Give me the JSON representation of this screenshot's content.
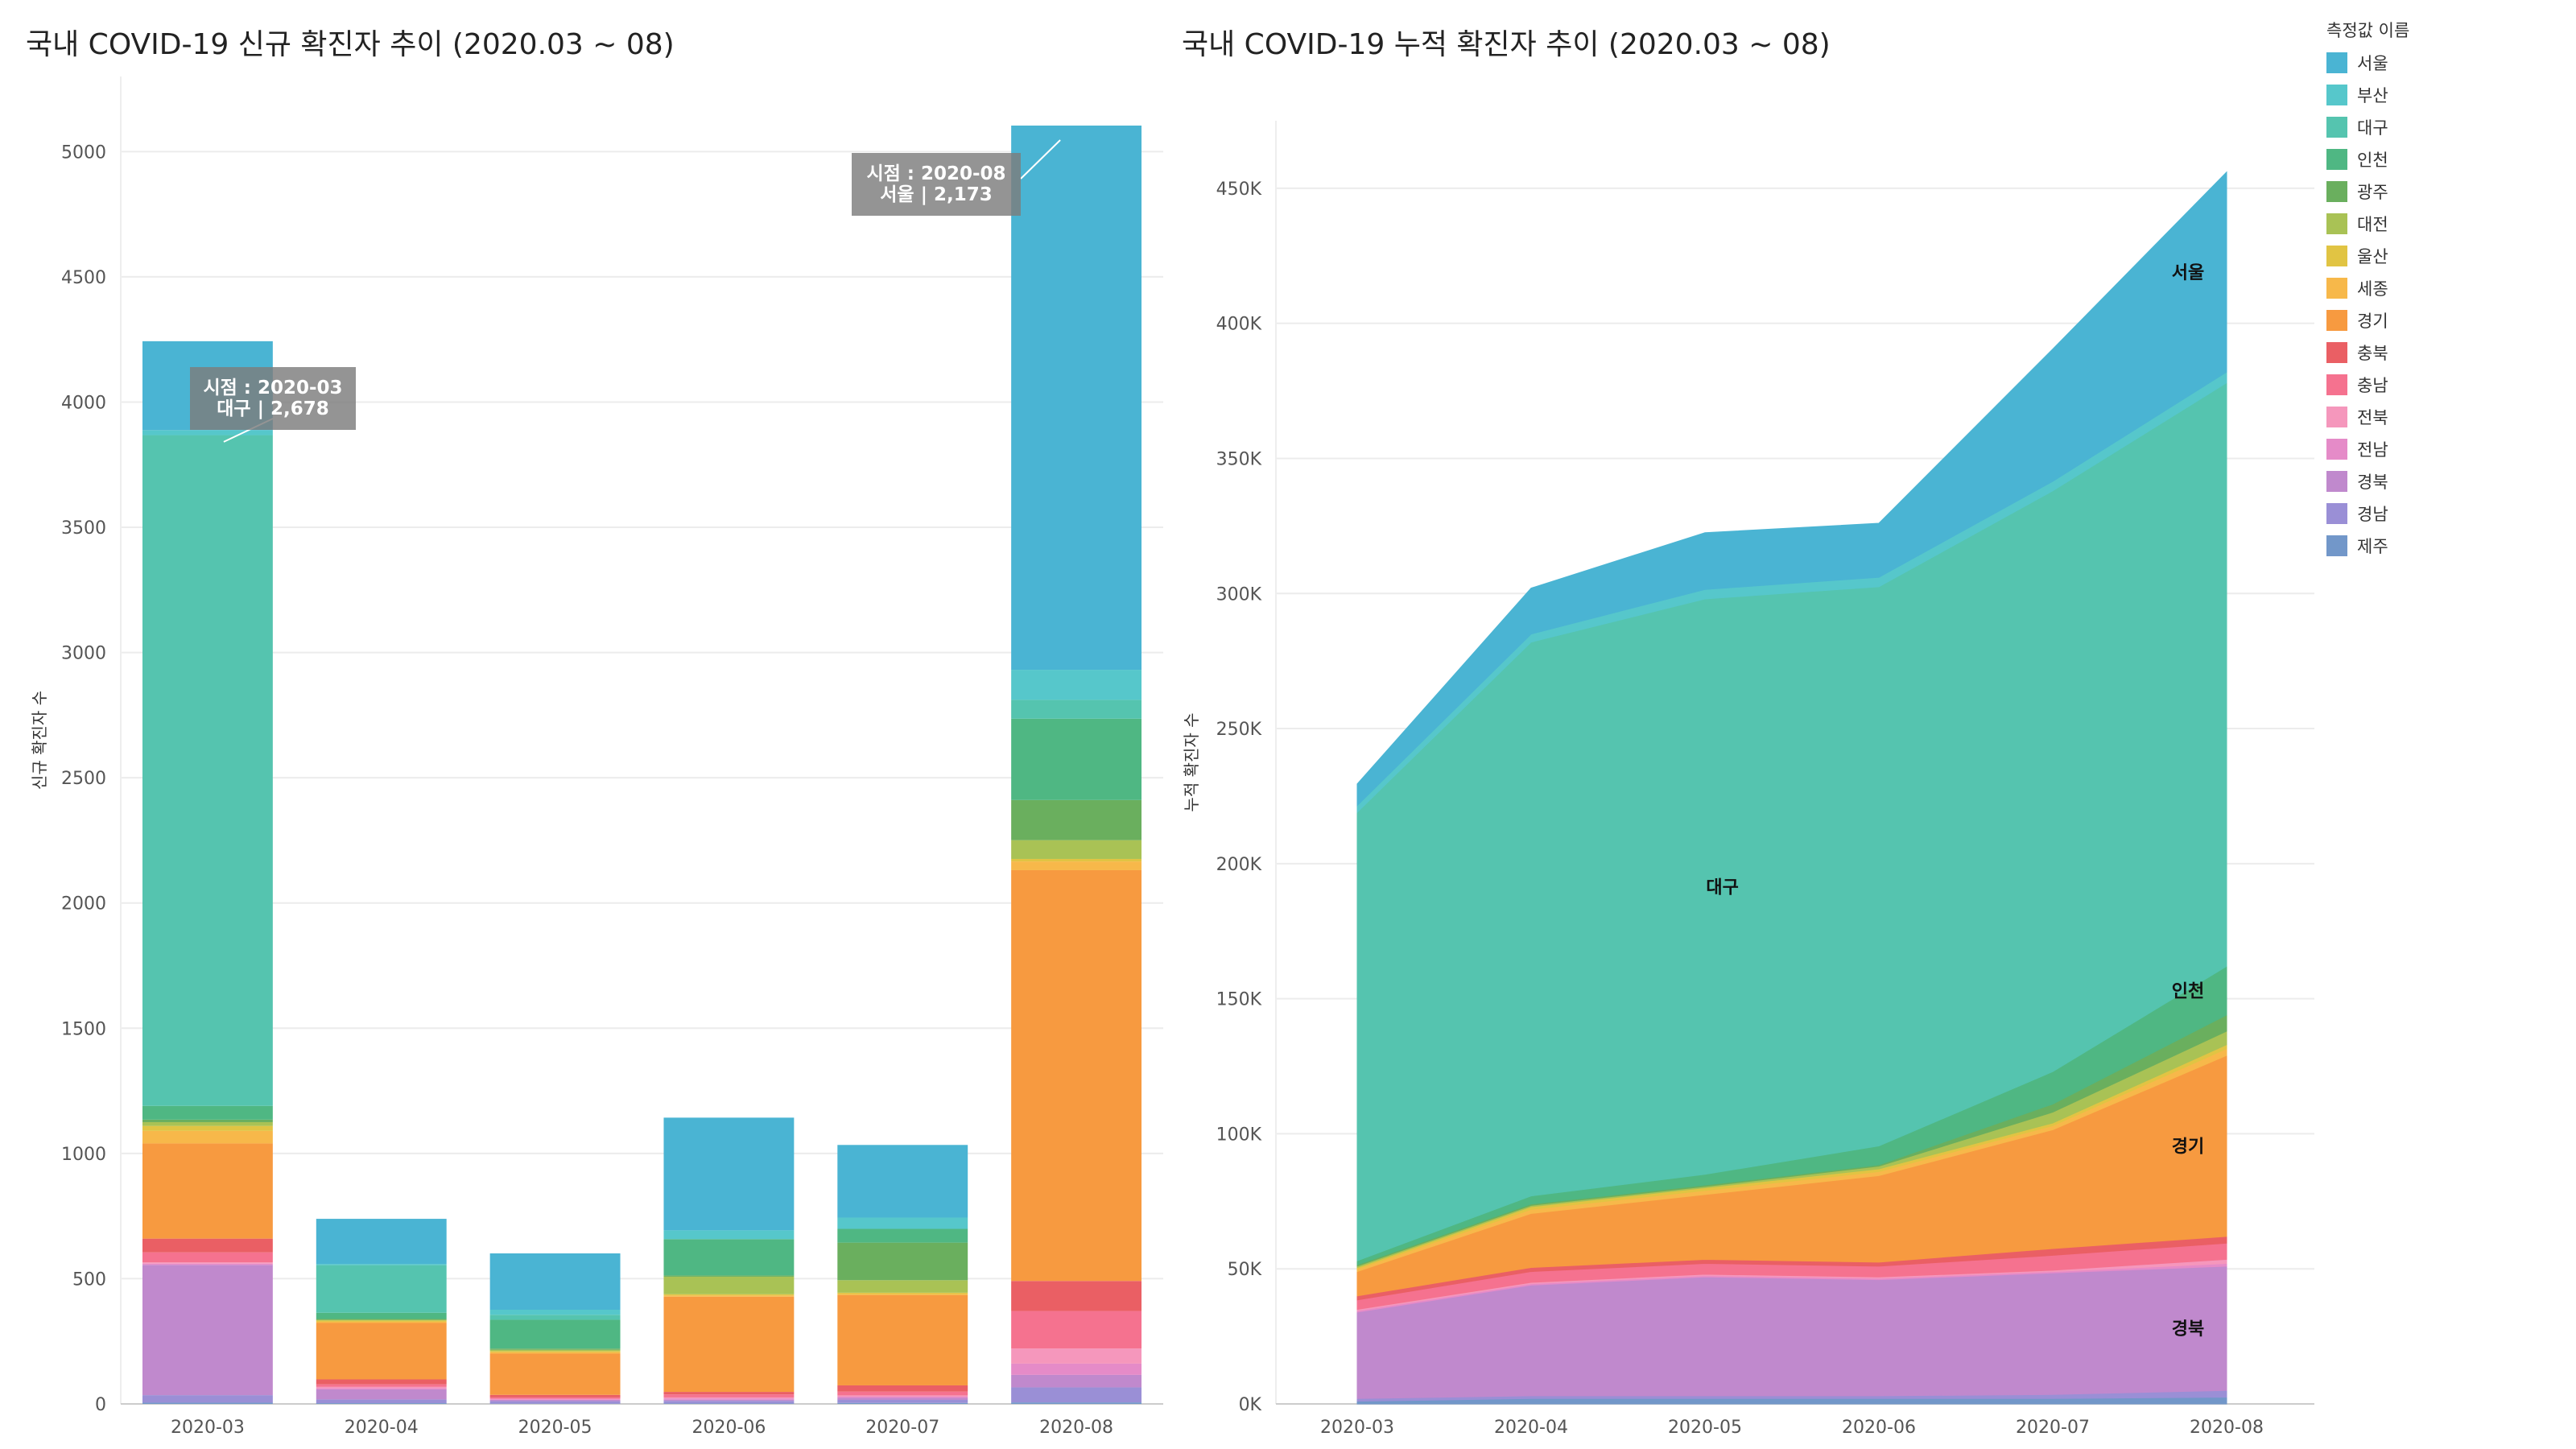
{
  "legend_title": "측정값 이름",
  "regions": [
    {
      "name": "서울",
      "color": "#4ab4d3"
    },
    {
      "name": "부산",
      "color": "#56c7cb"
    },
    {
      "name": "대구",
      "color": "#55c4af"
    },
    {
      "name": "인천",
      "color": "#4fb783"
    },
    {
      "name": "광주",
      "color": "#6aaf5e"
    },
    {
      "name": "대전",
      "color": "#a9c255"
    },
    {
      "name": "울산",
      "color": "#e1c443"
    },
    {
      "name": "세종",
      "color": "#f7b84a"
    },
    {
      "name": "경기",
      "color": "#f79a40"
    },
    {
      "name": "충북",
      "color": "#ea5f64"
    },
    {
      "name": "충남",
      "color": "#f5728f"
    },
    {
      "name": "전북",
      "color": "#f597bc"
    },
    {
      "name": "전남",
      "color": "#e58bc8"
    },
    {
      "name": "경북",
      "color": "#c089cd"
    },
    {
      "name": "경남",
      "color": "#9a8fd6"
    },
    {
      "name": "제주",
      "color": "#7297c9"
    }
  ],
  "chart_data": [
    {
      "type": "bar",
      "stacked": true,
      "title": "국내 COVID-19 신규 확진자 추이 (2020.03 ~ 08)",
      "ylabel": "신규 확진자 수",
      "xlabel": "",
      "ylim": [
        0,
        5300
      ],
      "yticks": [
        0,
        500,
        1000,
        1500,
        2000,
        2500,
        3000,
        3500,
        4000,
        4500,
        5000
      ],
      "grid": true,
      "categories": [
        "2020-03",
        "2020-04",
        "2020-05",
        "2020-06",
        "2020-07",
        "2020-08"
      ],
      "series": [
        {
          "name": "제주",
          "values": [
            5,
            3,
            1,
            2,
            4,
            6
          ]
        },
        {
          "name": "경남",
          "values": [
            30,
            15,
            10,
            10,
            12,
            60
          ]
        },
        {
          "name": "경북",
          "values": [
            520,
            40,
            5,
            5,
            8,
            50
          ]
        },
        {
          "name": "전남",
          "values": [
            5,
            5,
            2,
            5,
            5,
            45
          ]
        },
        {
          "name": "전북",
          "values": [
            5,
            5,
            3,
            4,
            5,
            60
          ]
        },
        {
          "name": "충남",
          "values": [
            40,
            10,
            5,
            12,
            15,
            150
          ]
        },
        {
          "name": "충북",
          "values": [
            55,
            20,
            10,
            10,
            25,
            120
          ]
        },
        {
          "name": "경기",
          "values": [
            380,
            225,
            165,
            380,
            360,
            1640
          ]
        },
        {
          "name": "세종",
          "values": [
            50,
            5,
            5,
            5,
            5,
            35
          ]
        },
        {
          "name": "울산",
          "values": [
            20,
            5,
            5,
            5,
            5,
            10
          ]
        },
        {
          "name": "대전",
          "values": [
            15,
            3,
            5,
            70,
            50,
            75
          ]
        },
        {
          "name": "광주",
          "values": [
            10,
            3,
            5,
            5,
            150,
            160
          ]
        },
        {
          "name": "인천",
          "values": [
            55,
            25,
            115,
            145,
            55,
            325
          ]
        },
        {
          "name": "대구",
          "values": [
            2678,
            190,
            20,
            0,
            0,
            75
          ]
        },
        {
          "name": "부산",
          "values": [
            20,
            5,
            20,
            35,
            45,
            120
          ]
        },
        {
          "name": "서울",
          "values": [
            355,
            180,
            225,
            450,
            290,
            2173
          ]
        }
      ],
      "annotations": [
        {
          "label_line1": "시점 : 2020-03",
          "label_line2": "대구 | 2,678"
        },
        {
          "label_line1": "시점 : 2020-08",
          "label_line2": "서울 | 2,173"
        }
      ]
    },
    {
      "type": "area",
      "stacked": true,
      "title": "국내 COVID-19 누적 확진자 추이 (2020.03 ~ 08)",
      "ylabel": "누적 확진자 수",
      "xlabel": "",
      "ylim": [
        0,
        475000
      ],
      "yticks": [
        0,
        50000,
        100000,
        150000,
        200000,
        250000,
        300000,
        350000,
        400000,
        450000
      ],
      "ytick_labels": [
        "0K",
        "50K",
        "100K",
        "150K",
        "200K",
        "250K",
        "300K",
        "350K",
        "400K",
        "450K"
      ],
      "grid": true,
      "x": [
        "2020-03",
        "2020-04",
        "2020-05",
        "2020-06",
        "2020-07",
        "2020-08"
      ],
      "series": [
        {
          "name": "제주",
          "values": [
            1000,
            2000,
            2000,
            2000,
            2000,
            2500
          ]
        },
        {
          "name": "경남",
          "values": [
            1000,
            1000,
            1000,
            1000,
            1500,
            2500
          ]
        },
        {
          "name": "경북",
          "values": [
            32000,
            41000,
            44000,
            43000,
            45000,
            46000
          ]
        },
        {
          "name": "전남",
          "values": [
            500,
            500,
            500,
            500,
            500,
            1000
          ]
        },
        {
          "name": "전북",
          "values": [
            500,
            500,
            500,
            500,
            500,
            1500
          ]
        },
        {
          "name": "충남",
          "values": [
            3500,
            4000,
            4000,
            4000,
            5500,
            6000
          ]
        },
        {
          "name": "충북",
          "values": [
            1500,
            1500,
            1500,
            1500,
            2500,
            2500
          ]
        },
        {
          "name": "경기",
          "values": [
            9000,
            20000,
            24000,
            32000,
            44000,
            67000
          ]
        },
        {
          "name": "세종",
          "values": [
            1000,
            1500,
            1500,
            1500,
            1500,
            2500
          ]
        },
        {
          "name": "울산",
          "values": [
            500,
            1000,
            1000,
            1000,
            1000,
            1500
          ]
        },
        {
          "name": "대전",
          "values": [
            500,
            500,
            500,
            1000,
            4000,
            5000
          ]
        },
        {
          "name": "광주",
          "values": [
            500,
            500,
            500,
            500,
            3000,
            6000
          ]
        },
        {
          "name": "인천",
          "values": [
            1500,
            3000,
            4000,
            7000,
            12000,
            18000
          ]
        },
        {
          "name": "대구",
          "values": [
            166000,
            205000,
            213000,
            207000,
            215000,
            216000
          ]
        },
        {
          "name": "부산",
          "values": [
            2500,
            3000,
            3500,
            3500,
            3500,
            4000
          ]
        },
        {
          "name": "서울",
          "values": [
            8000,
            17000,
            21000,
            20000,
            49000,
            74000
          ]
        }
      ],
      "area_labels": [
        "서울",
        "대구",
        "인천",
        "경기",
        "경북"
      ]
    }
  ]
}
